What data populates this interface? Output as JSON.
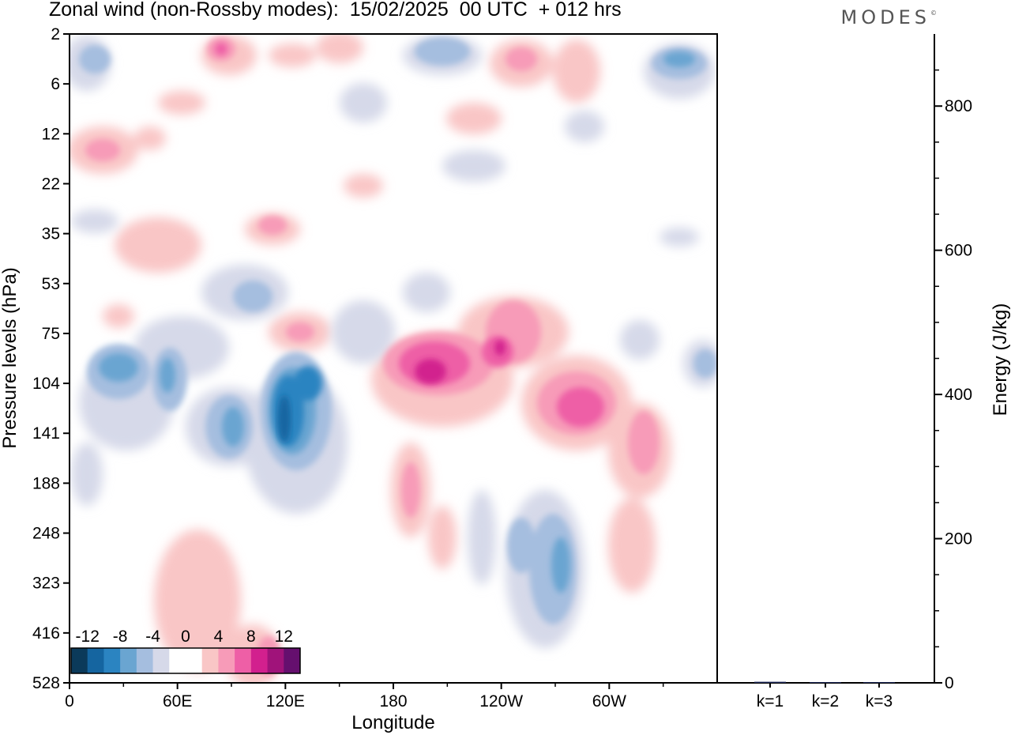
{
  "title": "Zonal wind (non-Rossby modes):  15/02/2025  00 UTC  + 012 hrs",
  "logo": "MODES",
  "chart_data": [
    {
      "type": "heatmap",
      "title": "Zonal wind (non-Rossby modes):  15/02/2025  00 UTC  + 012 hrs",
      "xlabel": "Longitude",
      "ylabel": "Pressure levels (hPa)",
      "x_ticks": [
        "0",
        "60E",
        "120E",
        "180",
        "120W",
        "60W"
      ],
      "y_ticks": [
        "2",
        "6",
        "12",
        "22",
        "35",
        "53",
        "75",
        "104",
        "141",
        "188",
        "248",
        "323",
        "416",
        "528"
      ],
      "colorbar": {
        "labels": [
          "-12",
          "-8",
          "-4",
          "0",
          "4",
          "8",
          "12"
        ],
        "colors": [
          "#0b3a5a",
          "#1565a0",
          "#2b84c1",
          "#6aa5d1",
          "#a5bedf",
          "#d6d9e9",
          "#ffffff",
          "#ffffff",
          "#f9c6c6",
          "#f79bb8",
          "#ee5fa6",
          "#d2208e",
          "#a0137a",
          "#650f6e"
        ]
      },
      "features": [
        {
          "sign": "positive",
          "level": 4,
          "lon": 195,
          "level_hpa": 100
        },
        {
          "sign": "positive",
          "level": 4,
          "lon": 240,
          "level_hpa": 130
        },
        {
          "sign": "negative",
          "level": -4,
          "lon": 123,
          "level_hpa": 140
        },
        {
          "sign": "negative",
          "level": -4,
          "lon": 212,
          "level_hpa": 300
        }
      ]
    },
    {
      "type": "bar",
      "categories": [
        "k=1",
        "k=2",
        "k=3"
      ],
      "values": [
        1.5,
        1.0,
        1.0
      ],
      "ylabel": "Energy (J/kg)",
      "ylim": [
        0,
        900
      ],
      "y_ticks": [
        0,
        200,
        400,
        600,
        800
      ],
      "color": "#1f2a5a"
    }
  ]
}
